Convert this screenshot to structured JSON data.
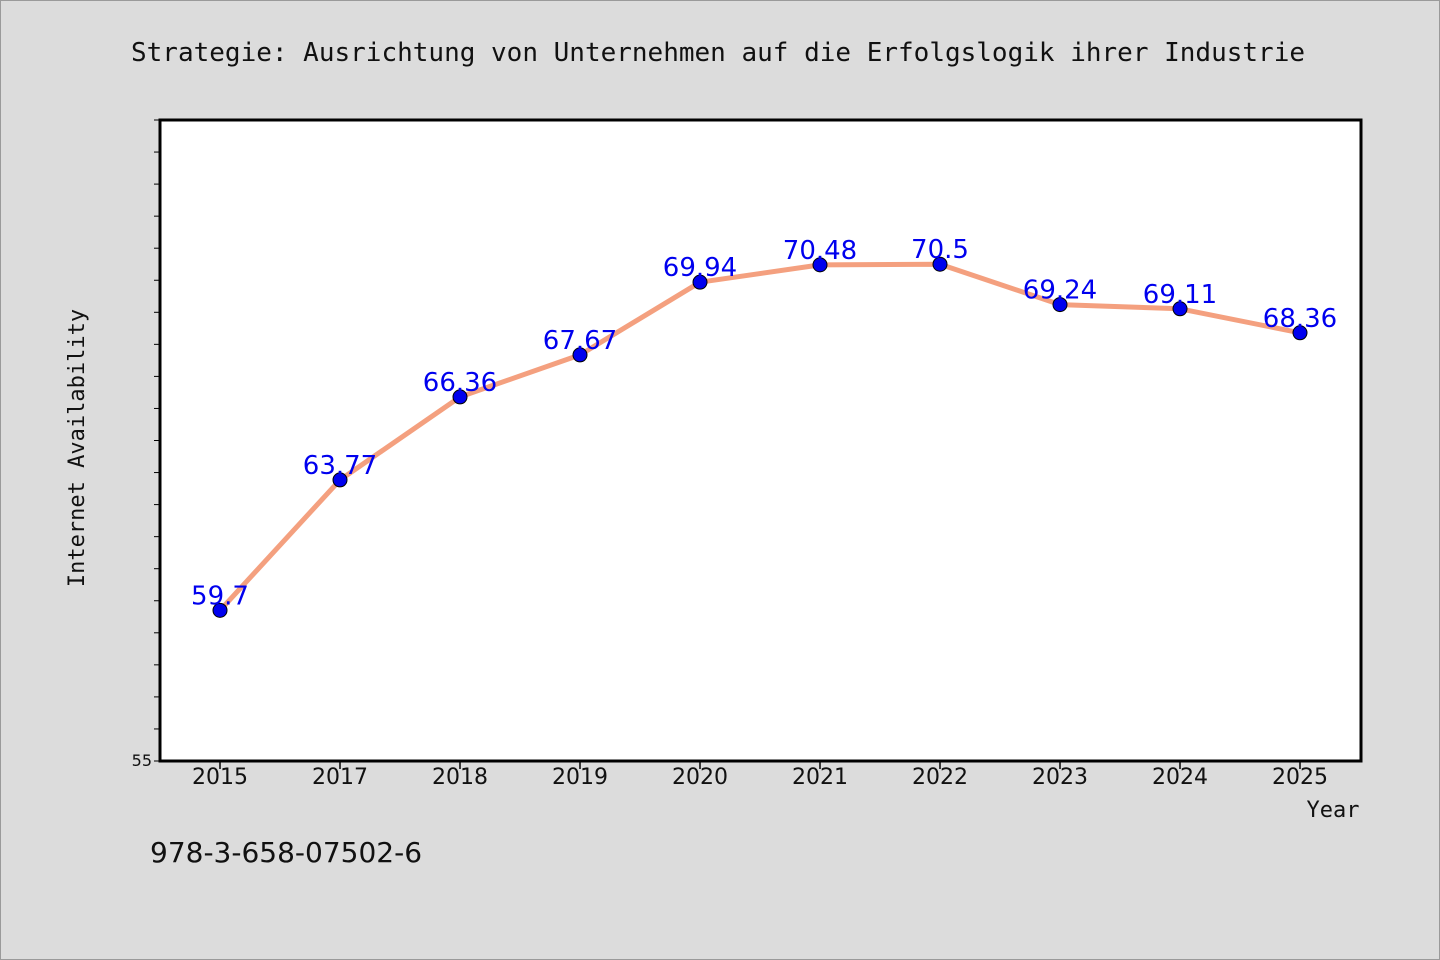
{
  "chart_data": {
    "type": "line",
    "title": "Strategie: Ausrichtung von Unternehmen auf die Erfolgslogik ihrer Industrie",
    "xlabel": "Year",
    "ylabel": "Internet Availability",
    "categories": [
      "2015",
      "2017",
      "2018",
      "2019",
      "2020",
      "2021",
      "2022",
      "2023",
      "2024",
      "2025"
    ],
    "series": [
      {
        "values": [
          59.7,
          63.77,
          66.36,
          67.67,
          69.94,
          70.48,
          70.5,
          69.24,
          69.11,
          68.36
        ],
        "labels": [
          "59.7",
          "63.77",
          "66.36",
          "67.67",
          "69.94",
          "70.48",
          "70.5",
          "69.24",
          "69.11",
          "68.36"
        ]
      }
    ],
    "ylim": [
      55,
      75
    ],
    "y_tick_labels": [
      "55"
    ],
    "y_minor_tick_step": 1,
    "grid": false,
    "colors": {
      "line": "#f4a07f",
      "marker": "#0000ee",
      "data_label": "#0000ee"
    }
  },
  "footer": {
    "isbn": "978-3-658-07502-6"
  }
}
